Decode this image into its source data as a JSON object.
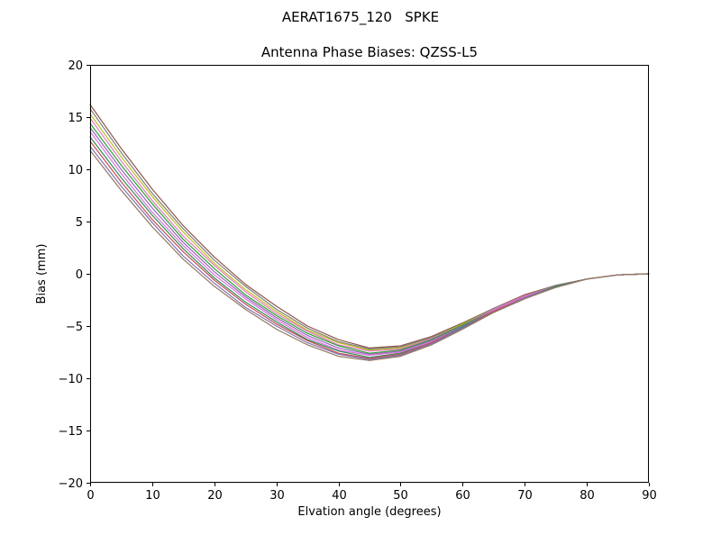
{
  "chart_data": {
    "type": "line",
    "title": "AERAT1675_120   SPKE",
    "subtitle": "Antenna Phase Biases: QZSS-L5",
    "xlabel": "Elvation angle (degrees)",
    "ylabel": "Bias (mm)",
    "xlim": [
      0,
      90
    ],
    "ylim": [
      -20,
      20
    ],
    "grid": false,
    "legend": "none",
    "xtick_values": [
      0,
      10,
      20,
      30,
      40,
      50,
      60,
      70,
      80,
      90
    ],
    "xtick_labels": [
      "0",
      "10",
      "20",
      "30",
      "40",
      "50",
      "60",
      "70",
      "80",
      "90"
    ],
    "ytick_values": [
      -20,
      -15,
      -10,
      -5,
      0,
      5,
      10,
      15,
      20
    ],
    "ytick_labels": [
      "−20",
      "−15",
      "−10",
      "−5",
      "0",
      "5",
      "10",
      "15",
      "20"
    ],
    "x": [
      0,
      5,
      10,
      15,
      20,
      25,
      30,
      35,
      40,
      45,
      50,
      55,
      60,
      65,
      70,
      75,
      80,
      85,
      90
    ],
    "series": [
      {
        "name": "bias-curve-1",
        "color": "#8c564b",
        "values": [
          16.2,
          12.0,
          8.1,
          4.6,
          1.6,
          -1.0,
          -3.1,
          -5.0,
          -6.3,
          -7.1,
          -6.9,
          -6.0,
          -4.7,
          -3.3,
          -2.0,
          -1.1,
          -0.5,
          -0.1,
          0.0
        ]
      },
      {
        "name": "bias-curve-2",
        "color": "#7f7f7f",
        "values": [
          15.8,
          11.6,
          7.7,
          4.3,
          1.3,
          -1.2,
          -3.4,
          -5.2,
          -6.5,
          -7.2,
          -7.0,
          -6.1,
          -4.8,
          -3.3,
          -2.1,
          -1.1,
          -0.5,
          -0.1,
          0.0
        ]
      },
      {
        "name": "bias-curve-3",
        "color": "#bcbd22",
        "values": [
          15.3,
          11.2,
          7.4,
          4.0,
          1.0,
          -1.5,
          -3.6,
          -5.4,
          -6.6,
          -7.3,
          -7.1,
          -6.2,
          -4.8,
          -3.4,
          -2.1,
          -1.2,
          -0.5,
          -0.1,
          0.0
        ]
      },
      {
        "name": "bias-curve-4",
        "color": "#e377c2",
        "values": [
          14.9,
          10.8,
          7.0,
          3.6,
          0.8,
          -1.7,
          -3.8,
          -5.5,
          -6.8,
          -7.4,
          -7.2,
          -6.2,
          -4.9,
          -3.4,
          -2.1,
          -1.2,
          -0.5,
          -0.1,
          0.0
        ]
      },
      {
        "name": "bias-curve-5",
        "color": "#2ca02c",
        "values": [
          14.4,
          10.4,
          6.7,
          3.3,
          0.5,
          -2.0,
          -4.0,
          -5.7,
          -6.9,
          -7.6,
          -7.3,
          -6.3,
          -4.9,
          -3.5,
          -2.2,
          -1.2,
          -0.5,
          -0.1,
          0.0
        ]
      },
      {
        "name": "bias-curve-6",
        "color": "#9467bd",
        "values": [
          14.0,
          10.0,
          6.3,
          3.0,
          0.2,
          -2.2,
          -4.2,
          -5.9,
          -7.1,
          -7.7,
          -7.4,
          -6.4,
          -5.0,
          -3.5,
          -2.2,
          -1.2,
          -0.5,
          -0.1,
          0.0
        ]
      },
      {
        "name": "bias-curve-7",
        "color": "#da70d6",
        "values": [
          13.6,
          9.6,
          5.9,
          2.7,
          -0.1,
          -2.4,
          -4.4,
          -6.1,
          -7.3,
          -7.8,
          -7.5,
          -6.5,
          -5.1,
          -3.5,
          -2.2,
          -1.2,
          -0.5,
          -0.1,
          0.0
        ]
      },
      {
        "name": "bias-curve-8",
        "color": "#2e8b57",
        "values": [
          13.1,
          9.2,
          5.6,
          2.4,
          -0.4,
          -2.7,
          -4.6,
          -6.3,
          -7.4,
          -8.0,
          -7.6,
          -6.6,
          -5.1,
          -3.6,
          -2.3,
          -1.2,
          -0.5,
          -0.1,
          0.0
        ]
      },
      {
        "name": "bias-curve-9",
        "color": "#c44e52",
        "values": [
          12.7,
          8.8,
          5.2,
          2.1,
          -0.6,
          -2.9,
          -4.8,
          -6.4,
          -7.6,
          -8.1,
          -7.7,
          -6.6,
          -5.2,
          -3.6,
          -2.3,
          -1.3,
          -0.5,
          -0.1,
          0.0
        ]
      },
      {
        "name": "bias-curve-10",
        "color": "#8172b2",
        "values": [
          12.2,
          8.4,
          4.9,
          1.7,
          -0.9,
          -3.2,
          -5.0,
          -6.6,
          -7.7,
          -8.2,
          -7.8,
          -6.7,
          -5.2,
          -3.7,
          -2.3,
          -1.3,
          -0.5,
          -0.1,
          0.0
        ]
      },
      {
        "name": "bias-curve-11",
        "color": "#937860",
        "values": [
          11.8,
          8.0,
          4.5,
          1.4,
          -1.2,
          -3.4,
          -5.3,
          -6.8,
          -7.9,
          -8.3,
          -7.9,
          -6.8,
          -5.3,
          -3.7,
          -2.4,
          -1.3,
          -0.5,
          -0.1,
          0.0
        ]
      }
    ]
  }
}
